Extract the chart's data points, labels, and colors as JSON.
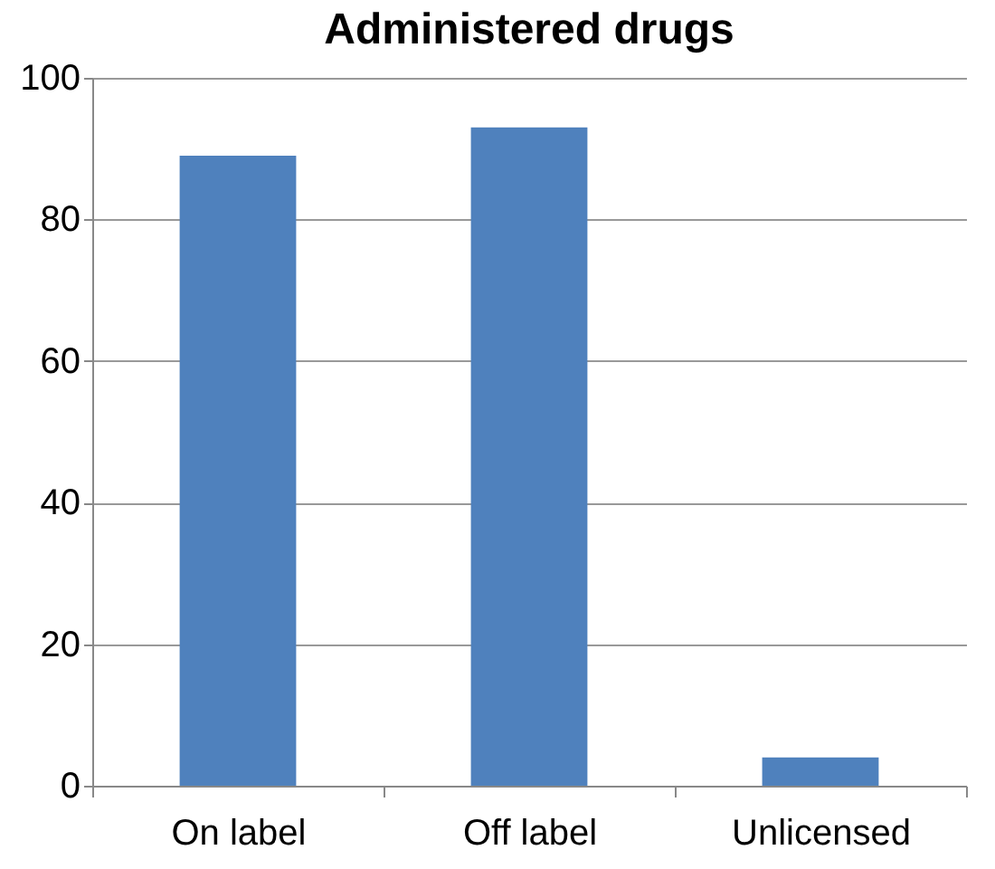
{
  "chart_data": {
    "type": "bar",
    "title": "Administered drugs",
    "categories": [
      "On label",
      "Off label",
      "Unlicensed"
    ],
    "values": [
      89,
      93,
      4
    ],
    "color": "#4f81bd",
    "ylim": [
      0,
      100
    ],
    "yticks": [
      0,
      20,
      40,
      60,
      80,
      100
    ],
    "grid": "y"
  }
}
